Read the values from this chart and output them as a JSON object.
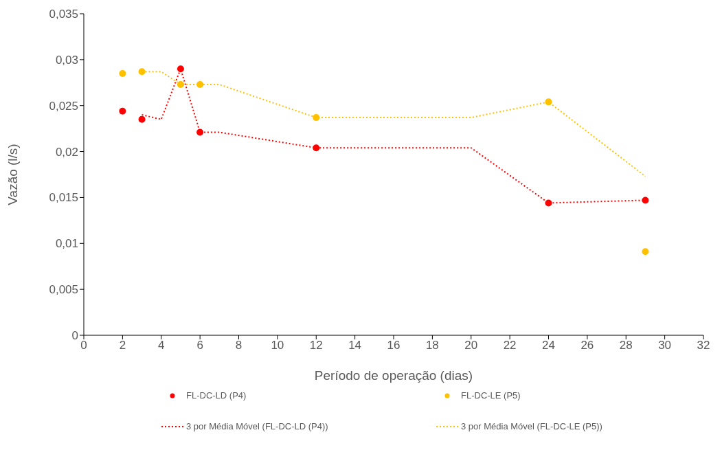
{
  "chart_data": {
    "type": "scatter",
    "xlabel": "Período de operação (dias)",
    "ylabel": "Vazão (l/s)",
    "xlim": [
      0,
      32
    ],
    "xticks": [
      0,
      2,
      4,
      6,
      8,
      10,
      12,
      14,
      16,
      18,
      20,
      22,
      24,
      26,
      28,
      30,
      32
    ],
    "ylim": [
      0,
      0.035
    ],
    "yticks": [
      0,
      {
        "value": 0.005,
        "label": "0,005"
      },
      {
        "value": 0.01,
        "label": "0,01"
      },
      {
        "value": 0.015,
        "label": "0,015"
      },
      {
        "value": 0.02,
        "label": "0,02"
      },
      {
        "value": 0.025,
        "label": "0,025"
      },
      {
        "value": 0.03,
        "label": "0,03"
      },
      {
        "value": 0.035,
        "label": "0,035"
      }
    ],
    "grid": false,
    "legend": "bottom",
    "series": [
      {
        "name": "FL-DC-LD (P4)",
        "marker": "circle",
        "color": "#ff0000",
        "x": [
          2,
          3,
          5,
          6,
          12,
          24,
          29
        ],
        "values": [
          0.0244,
          0.0235,
          0.029,
          0.0221,
          0.0204,
          0.0144,
          0.0147
        ]
      },
      {
        "name": "FL-DC-LE (P5)",
        "marker": "circle",
        "color": "#ffc000",
        "x": [
          2,
          3,
          5,
          6,
          12,
          24,
          29
        ],
        "values": [
          0.0285,
          0.0287,
          0.0273,
          0.0273,
          0.0237,
          0.0254,
          0.0091
        ]
      },
      {
        "name": "3 por Média Móvel (FL-DC-LD (P4))",
        "type": "line",
        "marker": "none",
        "line_style": "dotted",
        "color": "#ff0000",
        "x": [
          3,
          4,
          5,
          6,
          7,
          12,
          20,
          24,
          29
        ],
        "values": [
          0.024,
          0.0235,
          0.029,
          0.0221,
          0.0221,
          0.0204,
          0.0204,
          0.0144,
          0.0147
        ]
      },
      {
        "name": "3 por Média Móvel (FL-DC-LE (P5))",
        "type": "line",
        "marker": "none",
        "line_style": "dotted",
        "color": "#ffc000",
        "x": [
          3,
          4,
          5,
          6,
          7,
          12,
          20,
          24,
          29
        ],
        "values": [
          0.0287,
          0.0287,
          0.0273,
          0.0273,
          0.0273,
          0.0237,
          0.0237,
          0.0254,
          0.0173
        ]
      }
    ]
  }
}
